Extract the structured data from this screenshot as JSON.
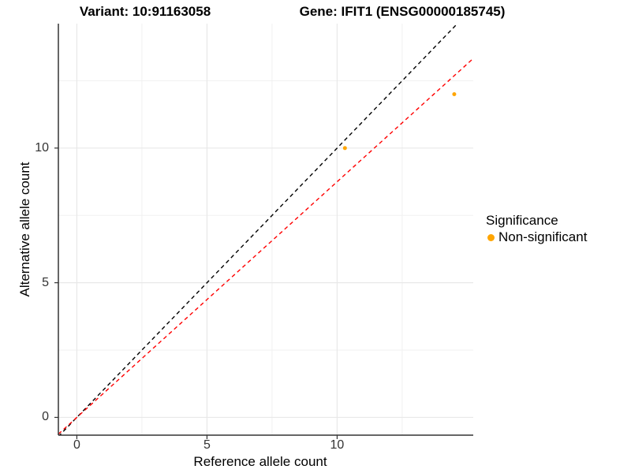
{
  "titles": {
    "left": "Variant: 10:91163058",
    "right": "Gene: IFIT1 (ENSG00000185745)"
  },
  "axes": {
    "x_label": "Reference allele count",
    "y_label": "Alternative allele count"
  },
  "chart_data": {
    "type": "scatter",
    "title": "Variant: 10:91163058 — Gene: IFIT1 (ENSG00000185745)",
    "xlabel": "Reference allele count",
    "ylabel": "Alternative allele count",
    "xlim": [
      -0.71,
      15.23
    ],
    "ylim": [
      -0.66,
      14.62
    ],
    "x_ticks": [
      0,
      5,
      10
    ],
    "y_ticks": [
      0,
      5,
      10
    ],
    "x_minor_ticks": [
      2.5,
      7.5,
      12.5
    ],
    "y_minor_ticks": [
      2.5,
      7.5,
      12.5
    ],
    "grid": "on",
    "points": [
      {
        "x": 10.3,
        "y": 10.0,
        "significance": "Non-significant"
      },
      {
        "x": 14.5,
        "y": 12.0,
        "significance": "Non-significant"
      }
    ],
    "lines": [
      {
        "name": "identity-line",
        "slope": 1.0,
        "intercept": 0,
        "color": "#000000",
        "style": "dashed"
      },
      {
        "name": "expected-ratio-line",
        "slope": 0.875,
        "intercept": 0,
        "color": "#FF0000",
        "style": "dashed"
      }
    ],
    "legend": {
      "position": "right",
      "title": "Significance",
      "items": [
        {
          "label": "Non-significant",
          "color": "#FFA500"
        }
      ]
    },
    "colors": {
      "point": "#FFA500",
      "grid_major": "#E8E8E8",
      "grid_minor": "#EFEFEF",
      "axis": "#333333",
      "tick_text": "#333333"
    }
  }
}
